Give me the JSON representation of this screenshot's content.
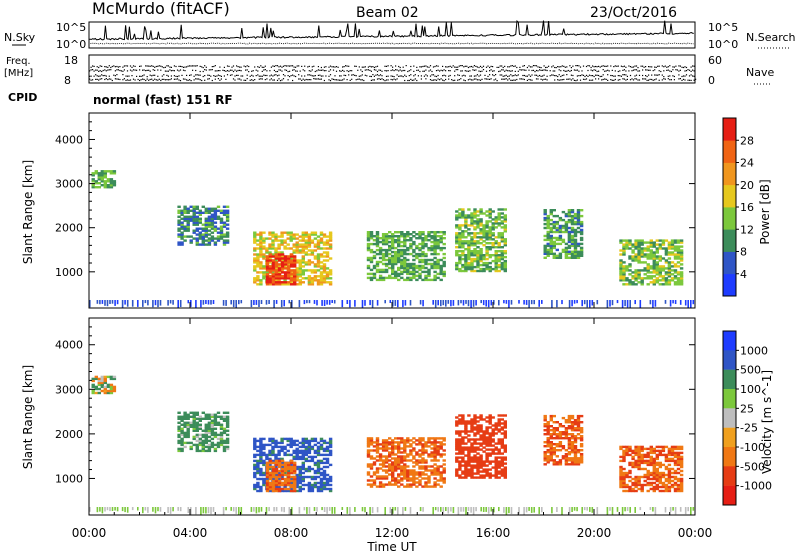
{
  "header": {
    "station": "McMurdo (fitACF)",
    "beam": "Beam 02",
    "date": "23/Oct/2016"
  },
  "top_panels": {
    "nsky_label": "N.Sky",
    "nsearch_label": "N.Search",
    "noise_ticks_left": [
      "10^5",
      "10^0"
    ],
    "noise_ticks_right": [
      "10^5",
      "10^0"
    ],
    "freq_label": "Freq.",
    "freq_unit": "[MHz]",
    "freq_ticks": [
      "18",
      "8"
    ],
    "nave_label": "Nave",
    "nave_ticks": [
      "60",
      "0"
    ],
    "cpid_label": "CPID",
    "cpid_value": "normal (fast) 151 RF"
  },
  "x_axis": {
    "label": "Time UT",
    "ticks": [
      "00:00",
      "04:00",
      "08:00",
      "12:00",
      "16:00",
      "20:00",
      "00:00"
    ]
  },
  "colors": {
    "power_scale": [
      "#1e3cff",
      "#2f55c6",
      "#3c8c5a",
      "#7cc83c",
      "#e6c81e",
      "#f0961e",
      "#f06414",
      "#e61e14"
    ],
    "velocity_scale": [
      "#1e3cff",
      "#2f55c6",
      "#3c8c5a",
      "#7cc83c",
      "#bebebe",
      "#f0a01e",
      "#f07814",
      "#e63c14",
      "#e61e14"
    ]
  },
  "chart_data": [
    {
      "type": "heatmap",
      "title": "",
      "xlabel": "",
      "ylabel": "Slant Range [km]",
      "xlim": [
        "00:00",
        "24:00"
      ],
      "ylim": [
        180,
        4600
      ],
      "yticks": [
        "4000",
        "3000",
        "2000",
        "1000"
      ],
      "colorbar": {
        "label": "Power [dB]",
        "ticks": [
          "28",
          "24",
          "20",
          "16",
          "12",
          "8",
          "4"
        ],
        "range": [
          0,
          30
        ]
      },
      "echo_regions": [
        {
          "t_start": 0.1,
          "t_end": 1.0,
          "r_min": 2900,
          "r_max": 3300,
          "power": 12
        },
        {
          "t_start": 3.5,
          "t_end": 5.5,
          "r_min": 1600,
          "r_max": 2500,
          "power": 9
        },
        {
          "t_start": 6.5,
          "t_end": 9.5,
          "r_min": 700,
          "r_max": 1900,
          "power": 18
        },
        {
          "t_start": 7.0,
          "t_end": 8.2,
          "r_min": 700,
          "r_max": 1400,
          "power": 28
        },
        {
          "t_start": 11.0,
          "t_end": 14.0,
          "r_min": 800,
          "r_max": 1900,
          "power": 12
        },
        {
          "t_start": 14.5,
          "t_end": 16.5,
          "r_min": 1000,
          "r_max": 2400,
          "power": 13
        },
        {
          "t_start": 18.0,
          "t_end": 19.5,
          "r_min": 1300,
          "r_max": 2400,
          "power": 11
        },
        {
          "t_start": 21.0,
          "t_end": 23.5,
          "r_min": 700,
          "r_max": 1700,
          "power": 14
        }
      ]
    },
    {
      "type": "heatmap",
      "title": "",
      "xlabel": "Time UT",
      "ylabel": "Slant Range [km]",
      "xlim": [
        "00:00",
        "24:00"
      ],
      "ylim": [
        180,
        4600
      ],
      "yticks": [
        "4000",
        "3000",
        "2000",
        "1000"
      ],
      "colorbar": {
        "label": "Velocity [m s^-1]",
        "ticks": [
          "1000",
          "500",
          "100",
          "25",
          "-25",
          "-100",
          "-500",
          "-1000"
        ],
        "range": [
          -1000,
          1000
        ]
      },
      "echo_regions": [
        {
          "t_start": 0.1,
          "t_end": 1.0,
          "r_min": 2900,
          "r_max": 3300,
          "velocity": 0
        },
        {
          "t_start": 3.5,
          "t_end": 5.5,
          "r_min": 1600,
          "r_max": 2500,
          "velocity": 150
        },
        {
          "t_start": 6.5,
          "t_end": 9.5,
          "r_min": 700,
          "r_max": 1900,
          "velocity": 400
        },
        {
          "t_start": 11.0,
          "t_end": 14.0,
          "r_min": 800,
          "r_max": 1900,
          "velocity": -250
        },
        {
          "t_start": 14.5,
          "t_end": 16.5,
          "r_min": 1000,
          "r_max": 2400,
          "velocity": -250
        },
        {
          "t_start": 18.0,
          "t_end": 19.5,
          "r_min": 1300,
          "r_max": 2400,
          "velocity": -500
        },
        {
          "t_start": 21.0,
          "t_end": 23.5,
          "r_min": 700,
          "r_max": 1700,
          "velocity": -300
        }
      ]
    }
  ]
}
